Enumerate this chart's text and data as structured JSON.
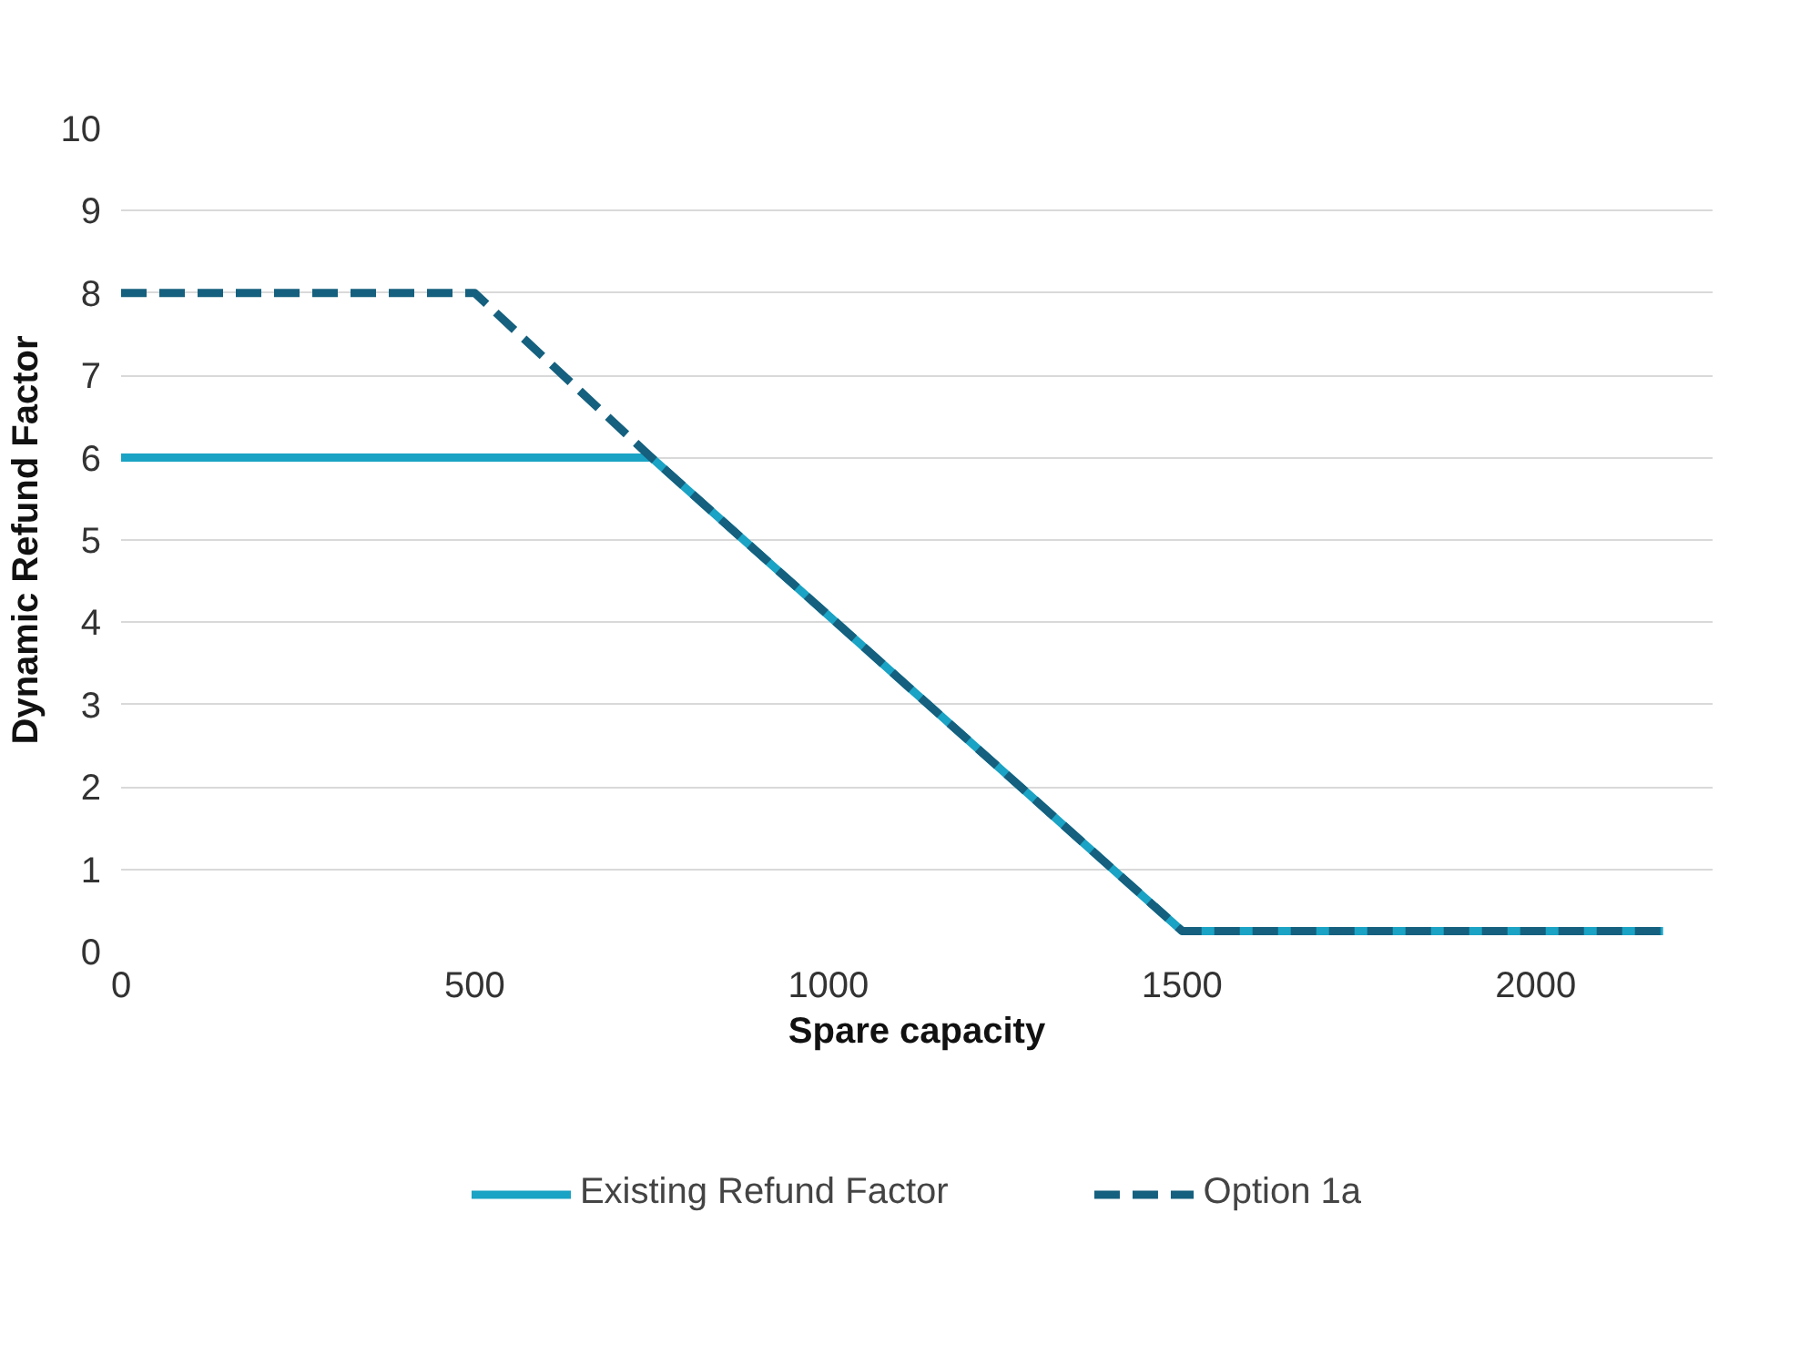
{
  "chart_data": {
    "type": "line",
    "xlabel": "Spare capacity",
    "ylabel": "Dynamic Refund Factor",
    "xlim": [
      0,
      2250
    ],
    "xticks": [
      0,
      500,
      1000,
      1500,
      2000
    ],
    "ylim": [
      0,
      10
    ],
    "yticks": [
      0,
      1,
      2,
      3,
      4,
      5,
      6,
      7,
      8,
      9,
      10
    ],
    "grid": "y",
    "legend": "bottom",
    "marker": "none",
    "series": [
      {
        "name": "Existing Refund Factor",
        "color": "#1aa3c4",
        "line_style": "solid",
        "x": [
          0,
          750,
          1500,
          2180
        ],
        "values": [
          6,
          6,
          0.25,
          0.25
        ]
      },
      {
        "name": "Option 1a",
        "color": "#15607e",
        "line_style": "dashed",
        "x": [
          0,
          500,
          750,
          1500,
          2180
        ],
        "values": [
          8,
          8,
          6,
          0.25,
          0.25
        ]
      }
    ]
  }
}
